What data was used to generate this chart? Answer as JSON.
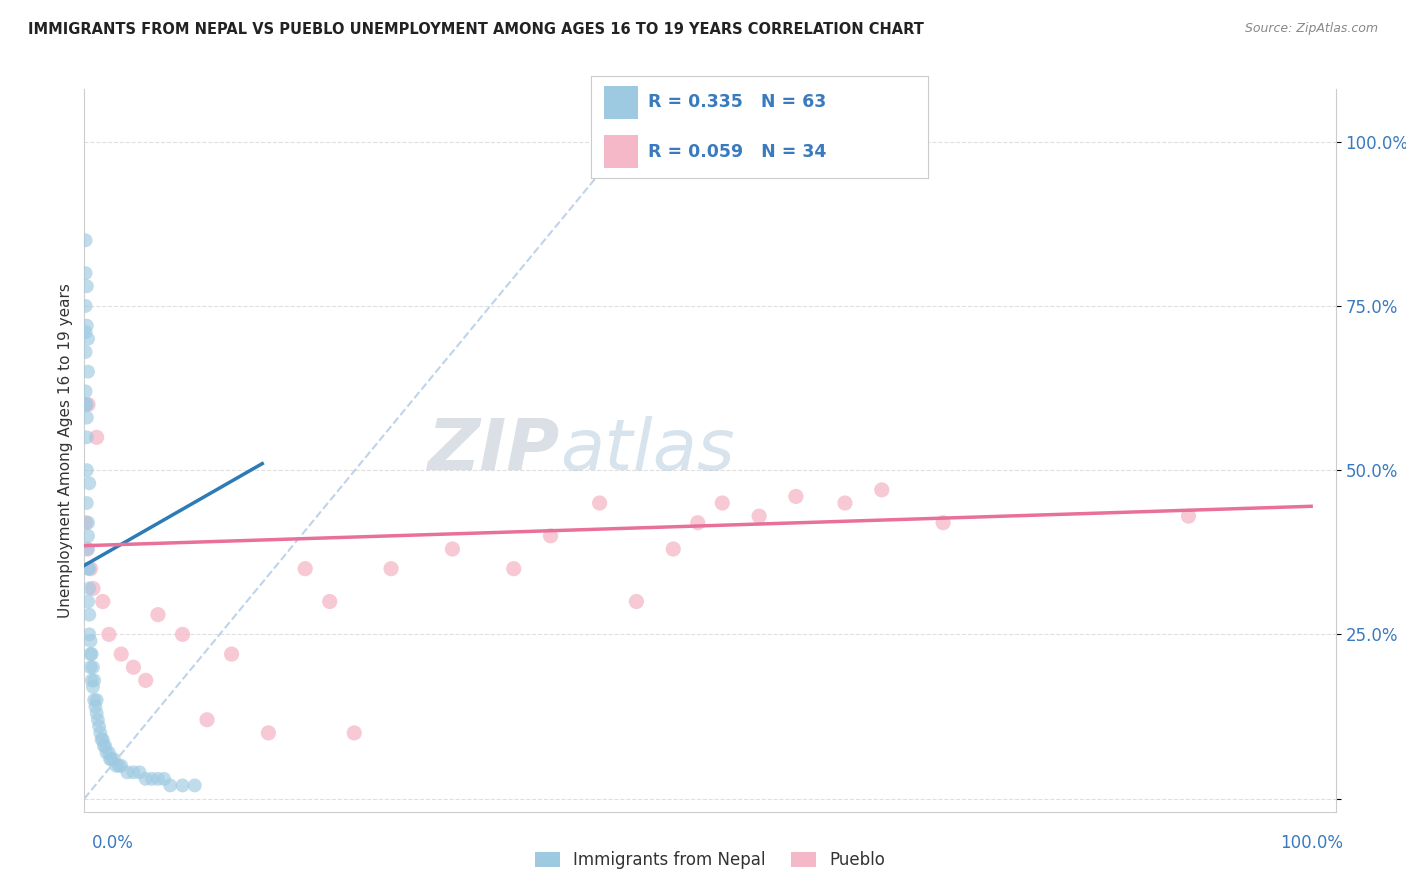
{
  "title": "IMMIGRANTS FROM NEPAL VS PUEBLO UNEMPLOYMENT AMONG AGES 16 TO 19 YEARS CORRELATION CHART",
  "source": "Source: ZipAtlas.com",
  "ylabel": "Unemployment Among Ages 16 to 19 years",
  "legend1_r": "R = 0.335",
  "legend1_n": "N = 63",
  "legend2_r": "R = 0.059",
  "legend2_n": "N = 34",
  "legend_label1": "Immigrants from Nepal",
  "legend_label2": "Pueblo",
  "blue_color": "#9ecae1",
  "pink_color": "#f4b8c8",
  "blue_line_color": "#2c7bb6",
  "pink_line_color": "#e8709a",
  "ref_line_color": "#b8cfe8",
  "watermark_zip": "ZIP",
  "watermark_atlas": "atlas",
  "blue_scatter_x": [
    0.001,
    0.001,
    0.001,
    0.001,
    0.002,
    0.002,
    0.002,
    0.002,
    0.002,
    0.003,
    0.003,
    0.003,
    0.003,
    0.003,
    0.004,
    0.004,
    0.004,
    0.004,
    0.005,
    0.005,
    0.005,
    0.006,
    0.006,
    0.007,
    0.007,
    0.008,
    0.008,
    0.009,
    0.01,
    0.01,
    0.011,
    0.012,
    0.013,
    0.014,
    0.015,
    0.016,
    0.017,
    0.018,
    0.02,
    0.021,
    0.022,
    0.024,
    0.026,
    0.028,
    0.03,
    0.035,
    0.04,
    0.045,
    0.05,
    0.055,
    0.06,
    0.065,
    0.07,
    0.08,
    0.09,
    0.001,
    0.001,
    0.001,
    0.002,
    0.002,
    0.003,
    0.003,
    0.004
  ],
  "blue_scatter_y": [
    0.62,
    0.68,
    0.71,
    0.6,
    0.58,
    0.55,
    0.5,
    0.45,
    0.6,
    0.4,
    0.38,
    0.35,
    0.42,
    0.3,
    0.32,
    0.28,
    0.25,
    0.35,
    0.22,
    0.2,
    0.24,
    0.18,
    0.22,
    0.17,
    0.2,
    0.15,
    0.18,
    0.14,
    0.13,
    0.15,
    0.12,
    0.11,
    0.1,
    0.09,
    0.09,
    0.08,
    0.08,
    0.07,
    0.07,
    0.06,
    0.06,
    0.06,
    0.05,
    0.05,
    0.05,
    0.04,
    0.04,
    0.04,
    0.03,
    0.03,
    0.03,
    0.03,
    0.02,
    0.02,
    0.02,
    0.8,
    0.75,
    0.85,
    0.72,
    0.78,
    0.65,
    0.7,
    0.48
  ],
  "pink_scatter_x": [
    0.001,
    0.002,
    0.003,
    0.005,
    0.007,
    0.01,
    0.015,
    0.02,
    0.03,
    0.04,
    0.05,
    0.06,
    0.08,
    0.1,
    0.12,
    0.15,
    0.18,
    0.2,
    0.22,
    0.25,
    0.3,
    0.35,
    0.38,
    0.42,
    0.45,
    0.48,
    0.5,
    0.52,
    0.55,
    0.58,
    0.62,
    0.65,
    0.7,
    0.9
  ],
  "pink_scatter_y": [
    0.42,
    0.38,
    0.6,
    0.35,
    0.32,
    0.55,
    0.3,
    0.25,
    0.22,
    0.2,
    0.18,
    0.28,
    0.25,
    0.12,
    0.22,
    0.1,
    0.35,
    0.3,
    0.1,
    0.35,
    0.38,
    0.35,
    0.4,
    0.45,
    0.3,
    0.38,
    0.42,
    0.45,
    0.43,
    0.46,
    0.45,
    0.47,
    0.42,
    0.43
  ],
  "blue_line_x": [
    0.0,
    0.145
  ],
  "blue_line_y": [
    0.355,
    0.51
  ],
  "pink_line_x": [
    0.0,
    1.0
  ],
  "pink_line_y": [
    0.385,
    0.445
  ],
  "ref_line_x": [
    0.0,
    0.45
  ],
  "ref_line_y": [
    0.0,
    1.02
  ],
  "xlim": [
    0.0,
    1.02
  ],
  "ylim": [
    -0.02,
    1.08
  ],
  "yticks": [
    0.0,
    0.25,
    0.5,
    0.75,
    1.0
  ],
  "ytick_labels": [
    "",
    "25.0%",
    "50.0%",
    "75.0%",
    "100.0%"
  ]
}
